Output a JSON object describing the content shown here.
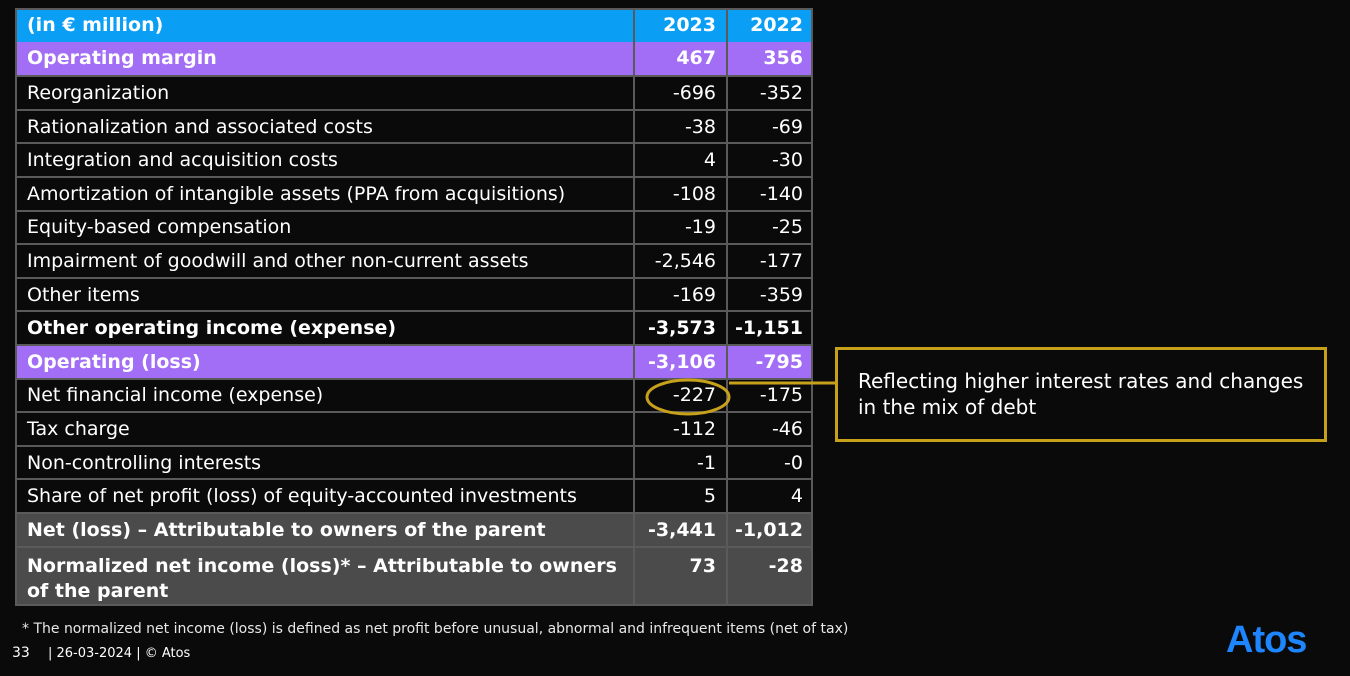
{
  "table": {
    "header": {
      "label": "(in € million)",
      "y2023": "2023",
      "y2022": "2022"
    },
    "rows": [
      {
        "label": "Operating margin",
        "y2023": "467",
        "y2022": "356",
        "style": "hl"
      },
      {
        "label": "Reorganization",
        "y2023": "-696",
        "y2022": "-352",
        "style": ""
      },
      {
        "label": "Rationalization and associated costs",
        "y2023": "-38",
        "y2022": "-69",
        "style": ""
      },
      {
        "label": "Integration and acquisition costs",
        "y2023": "4",
        "y2022": "-30",
        "style": ""
      },
      {
        "label": "Amortization of intangible assets (PPA from acquisitions)",
        "y2023": "-108",
        "y2022": "-140",
        "style": ""
      },
      {
        "label": "Equity-based compensation",
        "y2023": "-19",
        "y2022": "-25",
        "style": ""
      },
      {
        "label": "Impairment of goodwill and other non-current assets",
        "y2023": "-2,546",
        "y2022": "-177",
        "style": ""
      },
      {
        "label": "Other items",
        "y2023": "-169",
        "y2022": "-359",
        "style": ""
      },
      {
        "label": "Other operating income (expense)",
        "y2023": "-3,573",
        "y2022": "-1,151",
        "style": "bold"
      },
      {
        "label": "Operating (loss)",
        "y2023": "-3,106",
        "y2022": "-795",
        "style": "hl"
      },
      {
        "label": "Net financial income (expense)",
        "y2023": "-227",
        "y2022": "-175",
        "style": ""
      },
      {
        "label": "Tax charge",
        "y2023": "-112",
        "y2022": "-46",
        "style": ""
      },
      {
        "label": "Non-controlling interests",
        "y2023": "-1",
        "y2022": "-0",
        "style": ""
      },
      {
        "label": "Share of net profit (loss) of equity-accounted investments",
        "y2023": "5",
        "y2022": "4",
        "style": ""
      },
      {
        "label": "Net (loss) – Attributable to owners of the parent",
        "y2023": "-3,441",
        "y2022": "-1,012",
        "style": "grey"
      },
      {
        "label": "Normalized net income (loss)* – Attributable to owners of the parent",
        "y2023": "73",
        "y2022": "-28",
        "style": "grey tall"
      }
    ]
  },
  "callout": {
    "text": "Reflecting higher interest rates and changes in the mix of debt"
  },
  "footnote": "* The normalized net income (loss) is defined as net profit before unusual, abnormal and infrequent items (net of tax)",
  "footer": {
    "page": "33",
    "date_copyright": "| 26-03-2024 | © Atos"
  },
  "logo": "Atos",
  "colors": {
    "header": "#0a9ff5",
    "highlight": "#a36ef6",
    "total": "#4b4b4b",
    "callout_border": "#c7a11a",
    "logo": "#1d86ff"
  }
}
